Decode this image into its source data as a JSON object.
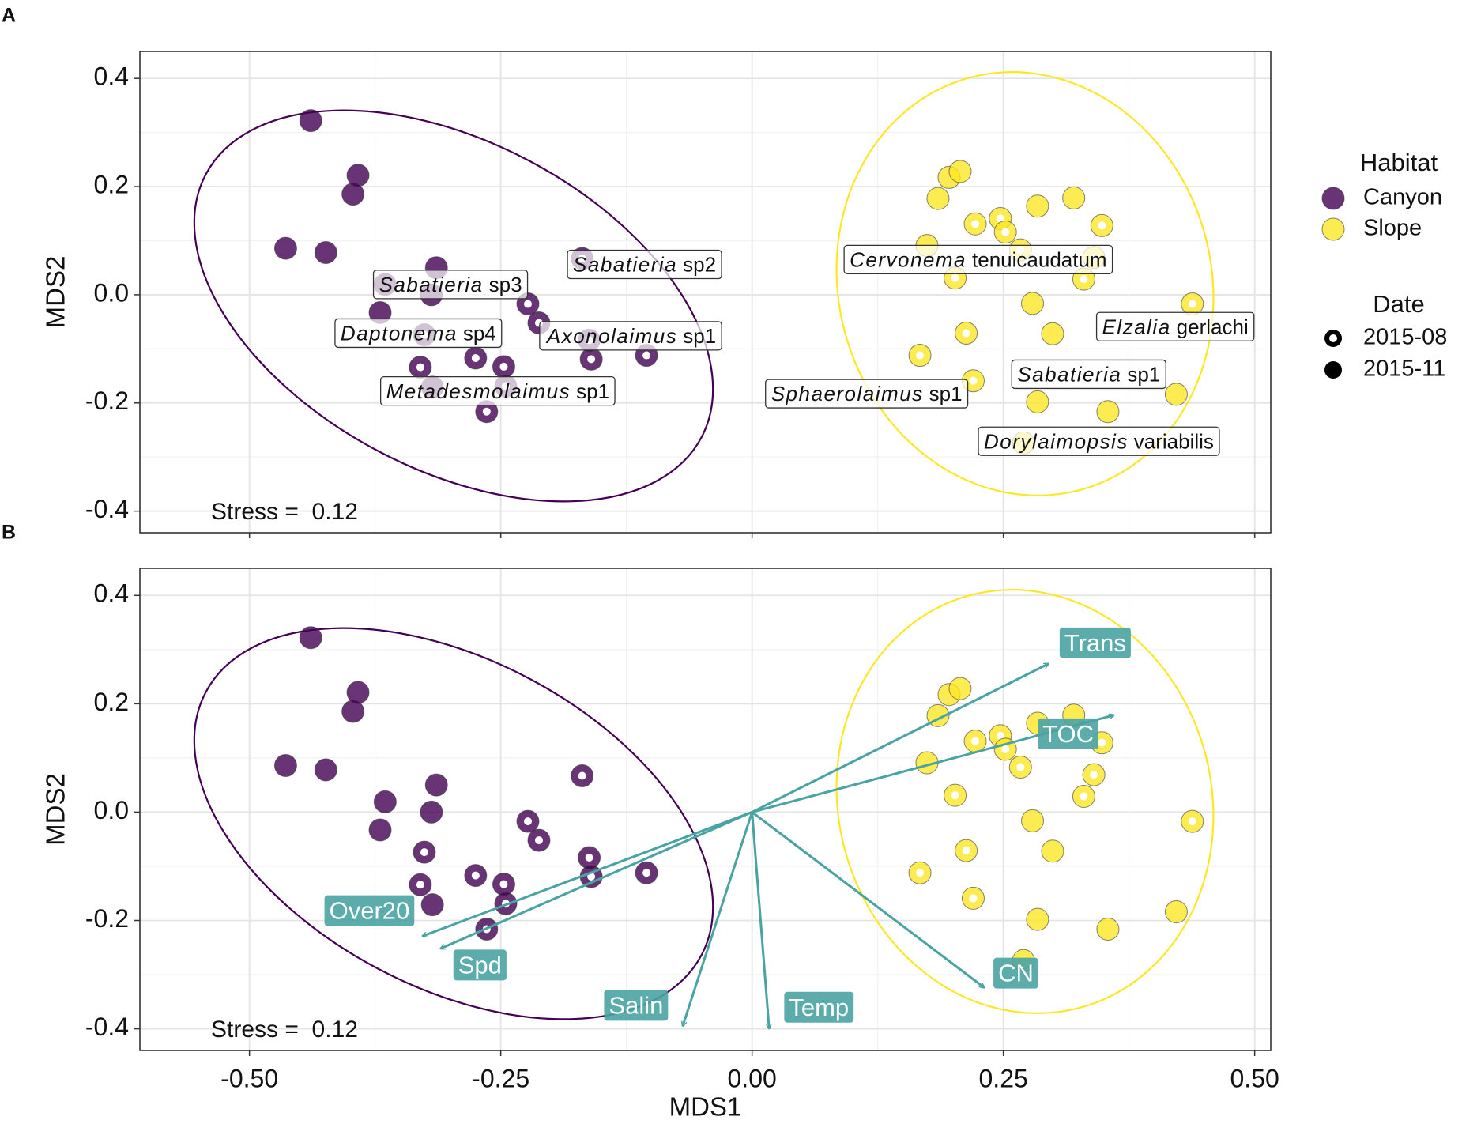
{
  "chart_data": [
    {
      "type": "scatter",
      "tag": "A",
      "ylabel": "MDS2",
      "xlim": [
        -0.609,
        0.516
      ],
      "ylim": [
        -0.44,
        0.45
      ],
      "xticks": [
        {
          "value": -0.5,
          "label": "-0.50"
        },
        {
          "value": -0.25,
          "label": "-0.25"
        },
        {
          "value": 0,
          "label": "0.00"
        },
        {
          "value": 0.25,
          "label": "0.25"
        },
        {
          "value": 0.5,
          "label": "0.50"
        }
      ],
      "xtick_labels": false,
      "yticks": [
        -0.4,
        -0.2,
        {
          "value": 0,
          "label": "0.0"
        },
        0.2,
        0.4
      ],
      "grid": true,
      "stress": "Stress =  0.12",
      "legend": {
        "position": "right",
        "groups": [
          {
            "title": "Habitat",
            "entries": [
              {
                "name": "Canyon",
                "color": "#440154"
              },
              {
                "name": "Slope",
                "color": "#FDE725"
              }
            ]
          },
          {
            "title": "Date",
            "entries": [
              {
                "name": "2015-08",
                "shape": "ring"
              },
              {
                "name": "2015-11",
                "shape": "filled"
              }
            ]
          }
        ]
      },
      "series": [
        {
          "habitat": "Canyon",
          "date": "2015-08",
          "color": "#440154",
          "x": [
            -0.326,
            -0.33,
            -0.275,
            -0.247,
            -0.245,
            -0.264,
            -0.223,
            -0.212,
            -0.169,
            -0.162,
            -0.16,
            -0.105
          ],
          "y": [
            -0.074,
            -0.134,
            -0.117,
            -0.133,
            -0.169,
            -0.216,
            -0.017,
            -0.052,
            0.067,
            -0.084,
            -0.119,
            -0.112
          ]
        },
        {
          "habitat": "Canyon",
          "date": "2015-11",
          "color": "#440154",
          "x": [
            -0.439,
            -0.392,
            -0.397,
            -0.464,
            -0.424,
            -0.314,
            -0.365,
            -0.319,
            -0.37,
            -0.318
          ],
          "y": [
            0.322,
            0.221,
            0.186,
            0.086,
            0.078,
            0.05,
            0.019,
            0.0,
            -0.033,
            -0.171
          ]
        },
        {
          "habitat": "Slope",
          "date": "2015-08",
          "color": "#FDE725",
          "x": [
            0.247,
            0.222,
            0.252,
            0.348,
            0.267,
            0.34,
            0.202,
            0.33,
            0.438,
            0.213,
            0.167,
            0.22
          ],
          "y": [
            0.141,
            0.131,
            0.116,
            0.128,
            0.083,
            0.069,
            0.031,
            0.029,
            -0.017,
            -0.071,
            -0.112,
            -0.159
          ]
        },
        {
          "habitat": "Slope",
          "date": "2015-11",
          "color": "#FDE725",
          "x": [
            0.196,
            0.207,
            0.185,
            0.284,
            0.32,
            0.174,
            0.279,
            0.299,
            0.422,
            0.284,
            0.354,
            0.27
          ],
          "y": [
            0.217,
            0.228,
            0.178,
            0.164,
            0.179,
            0.091,
            -0.016,
            -0.072,
            -0.184,
            -0.198,
            -0.216,
            -0.274
          ]
        }
      ],
      "annotations": [
        {
          "genus": "Sabatieria",
          "species": "sp2",
          "x": -0.107,
          "y": 0.053
        },
        {
          "genus": "Sabatieria",
          "species": "sp3",
          "x": -0.3,
          "y": 0.016
        },
        {
          "genus": "Daptonema",
          "species": "sp4",
          "x": -0.332,
          "y": -0.074
        },
        {
          "genus": "Axonolaimus",
          "species": "sp1",
          "x": -0.12,
          "y": -0.079
        },
        {
          "genus": "Metadesmolaimus",
          "species": "sp1",
          "x": -0.253,
          "y": -0.181
        },
        {
          "genus": "Cervonema",
          "species": "tenuicaudatum",
          "x": 0.225,
          "y": 0.062
        },
        {
          "genus": "Elzalia",
          "species": "gerlachi",
          "x": 0.421,
          "y": -0.062
        },
        {
          "genus": "Sabatieria",
          "species": "sp1",
          "x": 0.335,
          "y": -0.15
        },
        {
          "genus": "Sphaerolaimus",
          "species": "sp1",
          "x": 0.114,
          "y": -0.186
        },
        {
          "genus": "Dorylaimopsis",
          "species": "variabilis",
          "x": 0.345,
          "y": -0.274
        }
      ]
    },
    {
      "type": "scatter",
      "tag": "B",
      "ylabel": "MDS2",
      "xlabel": "MDS1",
      "xlim": [
        -0.609,
        0.516
      ],
      "ylim": [
        -0.44,
        0.45
      ],
      "xticks": [
        {
          "value": -0.5,
          "label": "-0.50"
        },
        {
          "value": -0.25,
          "label": "-0.25"
        },
        {
          "value": 0,
          "label": "0.00"
        },
        {
          "value": 0.25,
          "label": "0.25"
        },
        {
          "value": 0.5,
          "label": "0.50"
        }
      ],
      "xtick_labels": true,
      "yticks": [
        -0.4,
        -0.2,
        {
          "value": 0,
          "label": "0.0"
        },
        0.2,
        0.4
      ],
      "grid": true,
      "stress": "Stress =  0.12",
      "series": [
        {
          "habitat": "Canyon",
          "date": "2015-08",
          "color": "#440154",
          "x": [
            -0.326,
            -0.33,
            -0.275,
            -0.247,
            -0.245,
            -0.264,
            -0.223,
            -0.212,
            -0.169,
            -0.162,
            -0.16,
            -0.105
          ],
          "y": [
            -0.074,
            -0.134,
            -0.117,
            -0.133,
            -0.169,
            -0.216,
            -0.017,
            -0.052,
            0.067,
            -0.084,
            -0.119,
            -0.112
          ]
        },
        {
          "habitat": "Canyon",
          "date": "2015-11",
          "color": "#440154",
          "x": [
            -0.439,
            -0.392,
            -0.397,
            -0.464,
            -0.424,
            -0.314,
            -0.365,
            -0.319,
            -0.37,
            -0.318
          ],
          "y": [
            0.322,
            0.221,
            0.186,
            0.086,
            0.078,
            0.05,
            0.019,
            0.0,
            -0.033,
            -0.171
          ]
        },
        {
          "habitat": "Slope",
          "date": "2015-08",
          "color": "#FDE725",
          "x": [
            0.247,
            0.222,
            0.252,
            0.348,
            0.267,
            0.34,
            0.202,
            0.33,
            0.438,
            0.213,
            0.167,
            0.22
          ],
          "y": [
            0.141,
            0.131,
            0.116,
            0.128,
            0.083,
            0.069,
            0.031,
            0.029,
            -0.017,
            -0.071,
            -0.112,
            -0.159
          ]
        },
        {
          "habitat": "Slope",
          "date": "2015-11",
          "color": "#FDE725",
          "x": [
            0.196,
            0.207,
            0.185,
            0.284,
            0.32,
            0.174,
            0.279,
            0.299,
            0.422,
            0.284,
            0.354,
            0.27
          ],
          "y": [
            0.217,
            0.228,
            0.178,
            0.164,
            0.179,
            0.091,
            -0.016,
            -0.072,
            -0.184,
            -0.198,
            -0.216,
            -0.274
          ]
        }
      ],
      "vector_color": "#4aa3a3",
      "vectors": [
        {
          "label": "Trans",
          "x": 0.295,
          "y": 0.274
        },
        {
          "label": "TOC",
          "x": 0.36,
          "y": 0.179
        },
        {
          "label": "Over20",
          "x": -0.328,
          "y": -0.229
        },
        {
          "label": "Spd",
          "x": -0.31,
          "y": -0.252
        },
        {
          "label": "Salin",
          "x": -0.069,
          "y": -0.395
        },
        {
          "label": "Temp",
          "x": 0.017,
          "y": -0.4
        },
        {
          "label": "CN",
          "x": 0.231,
          "y": -0.324
        }
      ]
    }
  ]
}
